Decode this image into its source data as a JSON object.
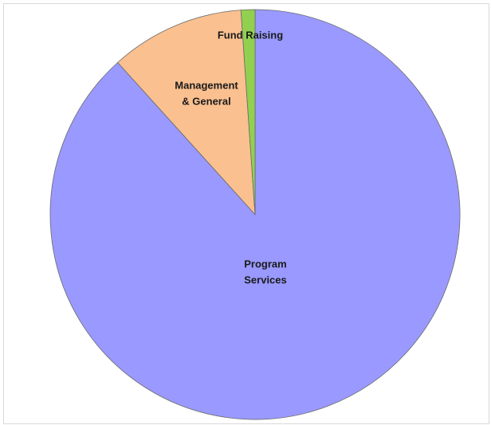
{
  "chart_data": {
    "type": "pie",
    "title": "",
    "slices": [
      {
        "label": "Program Services",
        "label_lines": [
          "Program",
          "Services"
        ],
        "value": 88.3,
        "color": "#9999ff"
      },
      {
        "label": "Management & General",
        "label_lines": [
          "Management",
          "& General"
        ],
        "value": 10.6,
        "color": "#fac090"
      },
      {
        "label": "Fund Raising",
        "label_lines": [
          "Fund Raising"
        ],
        "value": 1.1,
        "color": "#92d050"
      }
    ],
    "legend": "none",
    "stroke_color": "#6b6b6b"
  }
}
